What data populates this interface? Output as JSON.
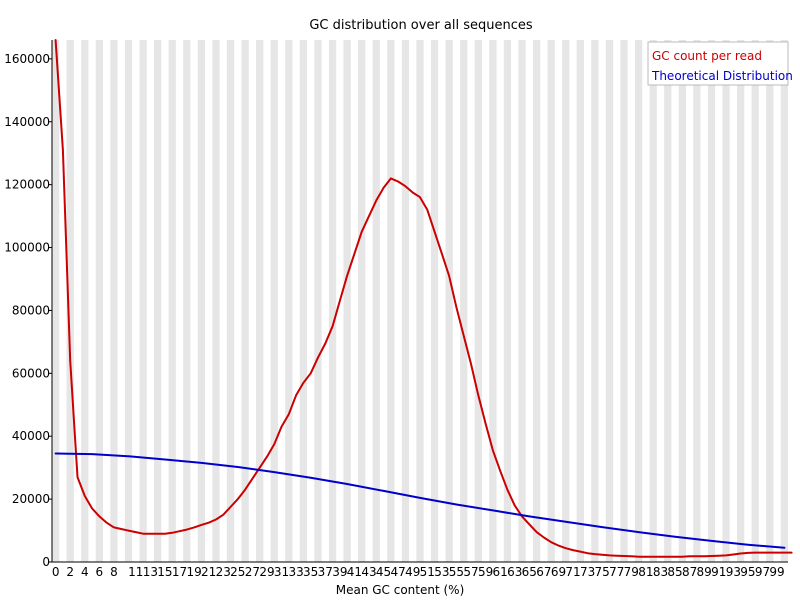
{
  "chart_data": {
    "type": "line",
    "title": "GC distribution over all sequences",
    "xlabel": "Mean GC content (%)",
    "ylabel": "",
    "xlim": [
      0,
      101
    ],
    "ylim": [
      0,
      166000
    ],
    "x_ticks": [
      0,
      2,
      4,
      6,
      8,
      11,
      13,
      15,
      17,
      19,
      21,
      23,
      25,
      27,
      29,
      31,
      33,
      35,
      37,
      39,
      41,
      43,
      45,
      47,
      49,
      51,
      53,
      55,
      57,
      59,
      61,
      63,
      65,
      67,
      69,
      71,
      73,
      75,
      77,
      79,
      81,
      83,
      85,
      87,
      89,
      91,
      93,
      95,
      97,
      99
    ],
    "x_tick_labels": [
      "0",
      "2",
      "4",
      "6",
      "8",
      "11",
      "13",
      "15",
      "17",
      "19",
      "21",
      "23",
      "25",
      "27",
      "29",
      "31",
      "33",
      "35",
      "37",
      "39",
      "41",
      "43",
      "45",
      "47",
      "49",
      "51",
      "53",
      "55",
      "57",
      "59",
      "61",
      "63",
      "65",
      "67",
      "69",
      "71",
      "73",
      "75",
      "77",
      "79",
      "81",
      "83",
      "85",
      "87",
      "89",
      "91",
      "93",
      "95",
      "97",
      "99"
    ],
    "y_ticks": [
      0,
      20000,
      40000,
      60000,
      80000,
      100000,
      120000,
      140000,
      160000
    ],
    "y_tick_labels": [
      "0",
      "20000",
      "40000",
      "60000",
      "80000",
      "100000",
      "120000",
      "140000",
      "160000"
    ],
    "grid": "alternating vertical stripes",
    "legend_placement": "top-right",
    "series": [
      {
        "name": "GC count per read",
        "color": "#cc0000",
        "x": [
          0,
          1,
          2,
          3,
          4,
          5,
          6,
          7,
          8,
          9,
          10,
          11,
          12,
          13,
          14,
          15,
          16,
          17,
          18,
          19,
          20,
          21,
          22,
          23,
          24,
          25,
          26,
          27,
          28,
          29,
          30,
          31,
          32,
          33,
          34,
          35,
          36,
          37,
          38,
          39,
          40,
          41,
          42,
          43,
          44,
          45,
          46,
          47,
          48,
          49,
          50,
          51,
          52,
          53,
          54,
          55,
          56,
          57,
          58,
          59,
          60,
          61,
          62,
          63,
          64,
          65,
          66,
          67,
          68,
          69,
          70,
          71,
          72,
          73,
          74,
          75,
          76,
          77,
          78,
          79,
          80,
          81,
          82,
          83,
          84,
          85,
          86,
          87,
          88,
          89,
          90,
          91,
          92,
          93,
          94,
          95,
          96,
          97,
          98,
          99,
          100,
          101
        ],
        "values": [
          166000,
          131000,
          64000,
          27000,
          21000,
          17000,
          14500,
          12500,
          11000,
          10500,
          10000,
          9500,
          9000,
          9000,
          9000,
          9000,
          9300,
          9800,
          10300,
          11000,
          11800,
          12500,
          13500,
          15000,
          17500,
          20000,
          23000,
          26500,
          30000,
          33500,
          37500,
          43000,
          47000,
          53000,
          57000,
          60000,
          65000,
          69500,
          75000,
          83000,
          91000,
          98000,
          105000,
          110000,
          115000,
          119000,
          122000,
          121000,
          119500,
          117500,
          116000,
          112000,
          105000,
          98000,
          91000,
          81000,
          72000,
          63000,
          53000,
          44000,
          35500,
          29000,
          23000,
          18000,
          14500,
          12000,
          9500,
          7800,
          6300,
          5200,
          4400,
          3800,
          3300,
          2800,
          2500,
          2300,
          2100,
          2000,
          1900,
          1800,
          1700,
          1700,
          1700,
          1700,
          1700,
          1700,
          1700,
          1800,
          1800,
          1800,
          1900,
          2000,
          2100,
          2400,
          2700,
          2900,
          3000,
          3000,
          3000,
          3000,
          3000,
          3000
        ],
        "values_note": ""
      },
      {
        "name": "Theoretical Distribution",
        "color": "#0000cc",
        "x": [
          0,
          5,
          10,
          15,
          20,
          25,
          30,
          35,
          40,
          45,
          50,
          55,
          60,
          65,
          70,
          75,
          80,
          85,
          90,
          95,
          100
        ],
        "values": [
          34500,
          34300,
          33600,
          32600,
          31500,
          30200,
          28600,
          26800,
          24800,
          22600,
          20400,
          18300,
          16400,
          14500,
          12800,
          11100,
          9500,
          8000,
          6700,
          5500,
          4500
        ]
      }
    ]
  }
}
